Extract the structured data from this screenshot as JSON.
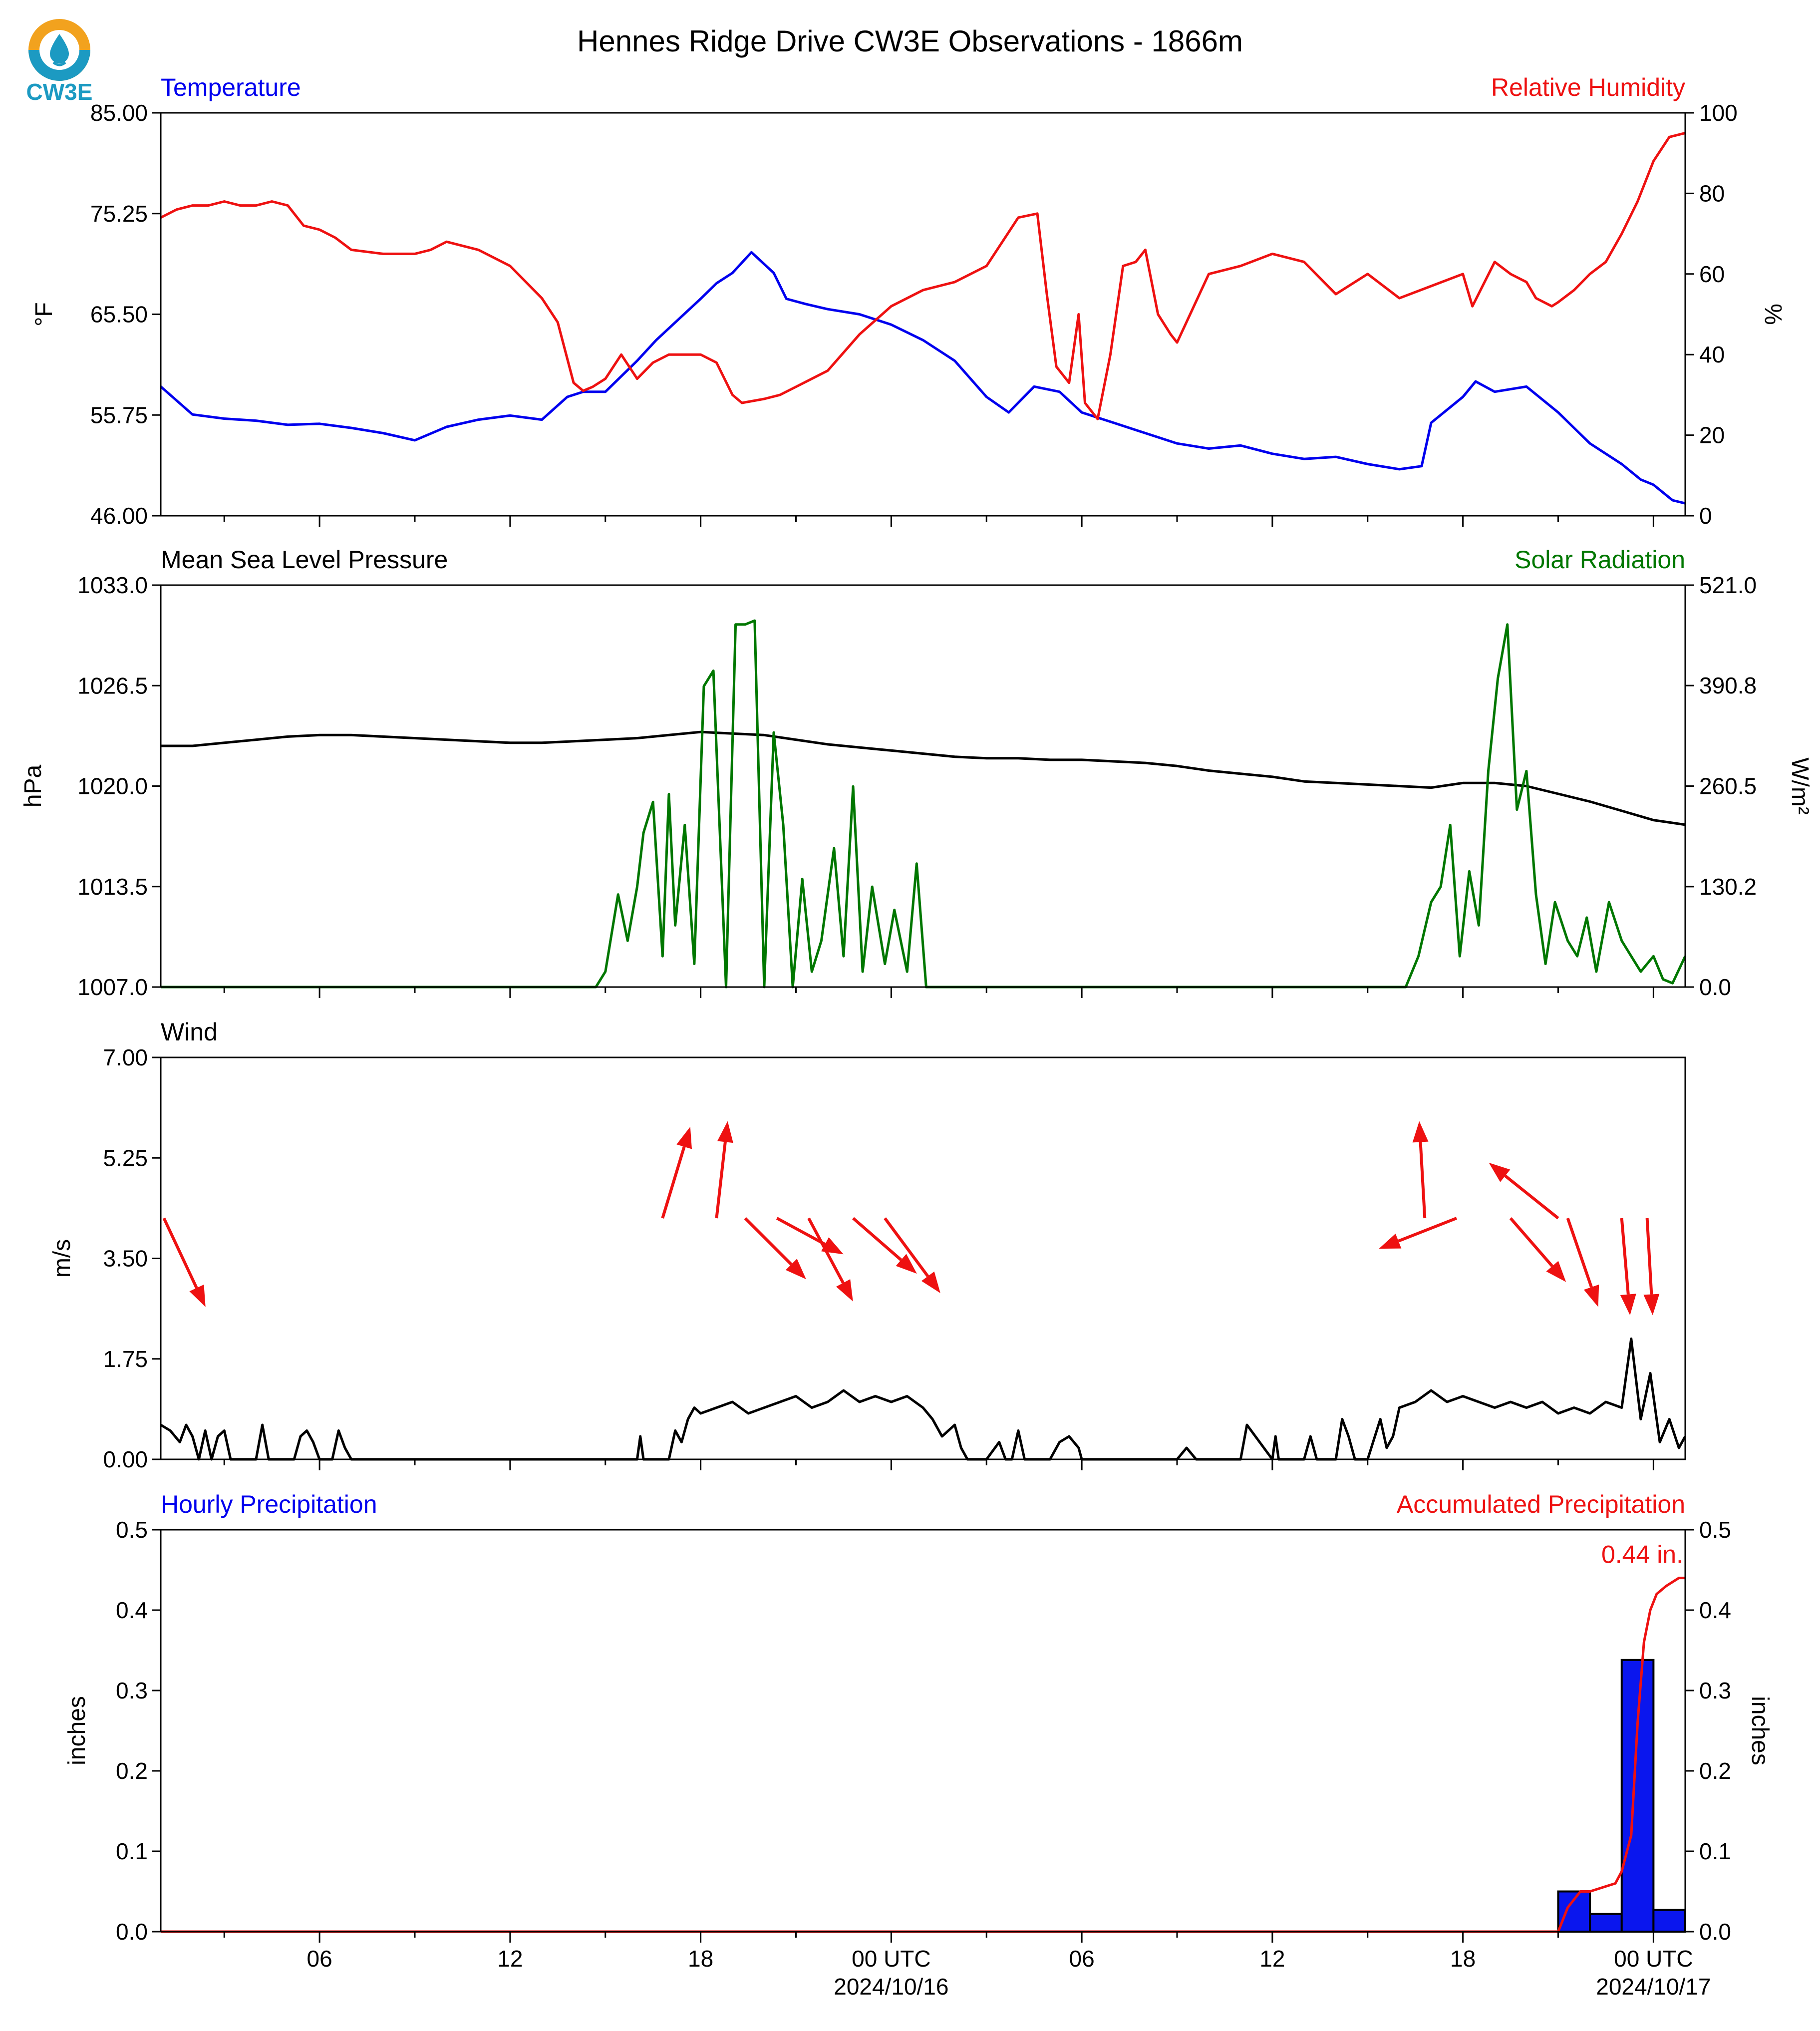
{
  "title": "Hennes Ridge Drive CW3E Observations - 1866m",
  "logo_text": "CW3E",
  "colors": {
    "blue": "#0000ee",
    "red": "#ee1111",
    "green": "#007700",
    "black": "#000000",
    "bar": "#0a16ee"
  },
  "chart_data": [
    {
      "type": "line",
      "panel": "temperature_humidity",
      "title_left": "Temperature",
      "title_right": "Relative Humidity",
      "ylabel_left": "°F",
      "ylabel_right": "%",
      "ylim_left": [
        46.0,
        85.0
      ],
      "ylim_right": [
        0,
        100
      ],
      "yticks_left": [
        "46.00",
        "55.75",
        "65.50",
        "75.25",
        "85.00"
      ],
      "yticks_right": [
        "0",
        "20",
        "40",
        "60",
        "80",
        "100"
      ],
      "series": [
        {
          "name": "Temperature",
          "axis": "left",
          "color": "blue",
          "x": [
            0,
            1,
            2,
            3,
            4,
            5,
            6,
            7,
            8,
            9,
            10,
            11,
            12,
            12.8,
            13.3,
            14,
            15,
            15.6,
            16.3,
            17,
            17.5,
            18,
            18.6,
            19.3,
            19.7,
            20.3,
            21,
            22,
            23,
            24,
            25,
            26,
            26.7,
            27.5,
            28.3,
            29,
            30,
            31,
            32,
            33,
            34,
            35,
            36,
            37,
            38,
            39,
            39.7,
            40,
            41,
            41.4,
            42,
            43,
            44,
            45,
            46,
            46.6,
            47,
            47.6,
            48
          ],
          "values": [
            58.5,
            55.8,
            55.4,
            55.2,
            54.8,
            54.9,
            54.5,
            54.0,
            53.3,
            54.6,
            55.3,
            55.7,
            55.3,
            57.5,
            58.0,
            58.0,
            61.0,
            63.0,
            65.0,
            67.0,
            68.5,
            69.5,
            71.5,
            69.5,
            67.0,
            66.5,
            66.0,
            65.5,
            64.5,
            63.0,
            61.0,
            57.5,
            56.0,
            58.5,
            58.0,
            56.0,
            55.0,
            54.0,
            53.0,
            52.5,
            52.8,
            52.0,
            51.5,
            51.7,
            51.0,
            50.5,
            50.8,
            55.0,
            57.5,
            59.0,
            58.0,
            58.5,
            56.0,
            53.0,
            51.0,
            49.5,
            49.0,
            47.5,
            47.2
          ]
        },
        {
          "name": "Relative Humidity",
          "axis": "right",
          "color": "red",
          "x": [
            0,
            0.5,
            1,
            1.5,
            2,
            2.5,
            3,
            3.5,
            4,
            4.5,
            5,
            5.5,
            6,
            7,
            8,
            8.5,
            9,
            9.5,
            10,
            11,
            12,
            12.5,
            13,
            13.3,
            13.6,
            14,
            14.5,
            15,
            15.5,
            16,
            16.5,
            17,
            17.5,
            18,
            18.3,
            19,
            19.5,
            20,
            21,
            22,
            23,
            24,
            25,
            26,
            26.5,
            27,
            27.6,
            27.9,
            28.2,
            28.6,
            28.9,
            29.1,
            29.5,
            29.9,
            30.3,
            30.7,
            31,
            31.4,
            31.8,
            32,
            33,
            34,
            35,
            36,
            37,
            38,
            39,
            40,
            41,
            41.3,
            42,
            42.5,
            43,
            43.3,
            43.8,
            44,
            44.5,
            45,
            45.5,
            46,
            46.5,
            47,
            47.5,
            48
          ],
          "values": [
            74,
            76,
            77,
            77,
            78,
            77,
            77,
            78,
            77,
            72,
            71,
            69,
            66,
            65,
            65,
            66,
            68,
            67,
            66,
            62,
            54,
            48,
            33,
            31,
            32,
            34,
            40,
            34,
            38,
            40,
            40,
            40,
            38,
            30,
            28,
            29,
            30,
            32,
            36,
            45,
            52,
            56,
            58,
            62,
            68,
            74,
            75,
            55,
            37,
            33,
            50,
            28,
            24,
            40,
            62,
            63,
            66,
            50,
            45,
            43,
            60,
            62,
            65,
            63,
            55,
            60,
            54,
            57,
            60,
            52,
            63,
            60,
            58,
            54,
            52,
            53,
            56,
            60,
            63,
            70,
            78,
            88,
            94,
            95
          ]
        }
      ]
    },
    {
      "type": "line",
      "panel": "pressure_solar",
      "title_left": "Mean Sea Level Pressure",
      "title_right": "Solar Radiation",
      "ylabel_left": "hPa",
      "ylabel_right": "W/m²",
      "ylim_left": [
        1007.0,
        1033.0
      ],
      "ylim_right": [
        0.0,
        521.0
      ],
      "yticks_left": [
        "1007.0",
        "1013.5",
        "1020.0",
        "1026.5",
        "1033.0"
      ],
      "yticks_right": [
        "0.0",
        "130.2",
        "260.5",
        "390.8",
        "521.0"
      ],
      "series": [
        {
          "name": "Mean Sea Level Pressure",
          "axis": "left",
          "color": "black",
          "x": [
            0,
            1,
            2,
            3,
            4,
            5,
            6,
            7,
            8,
            9,
            10,
            11,
            12,
            13,
            14,
            15,
            16,
            17,
            18,
            19,
            20,
            21,
            22,
            23,
            24,
            25,
            26,
            27,
            28,
            29,
            30,
            31,
            32,
            33,
            34,
            35,
            36,
            37,
            38,
            39,
            40,
            41,
            42,
            43,
            44,
            45,
            46,
            47,
            48
          ],
          "values": [
            1022.6,
            1022.6,
            1022.8,
            1023.0,
            1023.2,
            1023.3,
            1023.3,
            1023.2,
            1023.1,
            1023.0,
            1022.9,
            1022.8,
            1022.8,
            1022.9,
            1023.0,
            1023.1,
            1023.3,
            1023.5,
            1023.4,
            1023.3,
            1023.0,
            1022.7,
            1022.5,
            1022.3,
            1022.1,
            1021.9,
            1021.8,
            1021.8,
            1021.7,
            1021.7,
            1021.6,
            1021.5,
            1021.3,
            1021.0,
            1020.8,
            1020.6,
            1020.3,
            1020.2,
            1020.1,
            1020.0,
            1019.9,
            1020.2,
            1020.2,
            1020.0,
            1019.5,
            1019.0,
            1018.4,
            1017.8,
            1017.5
          ]
        },
        {
          "name": "Solar Radiation",
          "axis": "right",
          "color": "green",
          "x": [
            0,
            13.7,
            14.0,
            14.4,
            14.7,
            15.0,
            15.2,
            15.5,
            15.8,
            16.0,
            16.2,
            16.5,
            16.8,
            17.1,
            17.4,
            17.8,
            18.1,
            18.4,
            18.7,
            19.0,
            19.3,
            19.6,
            19.9,
            20.2,
            20.5,
            20.8,
            21.2,
            21.5,
            21.8,
            22.1,
            22.4,
            22.8,
            23.1,
            23.5,
            23.8,
            24.1,
            24.6,
            39.2,
            39.6,
            40.0,
            40.3,
            40.6,
            40.9,
            41.2,
            41.5,
            41.8,
            42.1,
            42.4,
            42.7,
            43.0,
            43.3,
            43.6,
            43.9,
            44.3,
            44.6,
            44.9,
            45.2,
            45.6,
            46.0,
            46.3,
            46.6,
            47.0,
            47.3,
            47.6,
            48.0
          ],
          "values": [
            0,
            0,
            20,
            120,
            60,
            130,
            200,
            240,
            40,
            250,
            80,
            210,
            30,
            390,
            410,
            0,
            470,
            470,
            475,
            0,
            330,
            210,
            0,
            140,
            20,
            60,
            180,
            40,
            260,
            20,
            130,
            30,
            100,
            20,
            160,
            0,
            0,
            0,
            40,
            110,
            130,
            210,
            40,
            150,
            80,
            280,
            400,
            470,
            230,
            280,
            120,
            30,
            110,
            60,
            40,
            90,
            20,
            110,
            60,
            40,
            20,
            40,
            10,
            5,
            40
          ]
        }
      ]
    },
    {
      "type": "line",
      "panel": "wind",
      "title_left": "Wind",
      "ylabel_left": "m/s",
      "ylim_left": [
        0.0,
        7.0
      ],
      "yticks_left": [
        "0.00",
        "1.75",
        "3.50",
        "5.25",
        "7.00"
      ],
      "series": [
        {
          "name": "Wind",
          "axis": "left",
          "color": "black",
          "x": [
            0,
            0.3,
            0.6,
            0.8,
            1.0,
            1.2,
            1.4,
            1.6,
            1.8,
            2.0,
            2.2,
            2.4,
            3.0,
            3.2,
            3.4,
            3.6,
            4.0,
            4.2,
            4.4,
            4.6,
            4.8,
            5.0,
            5.2,
            5.4,
            5.6,
            5.8,
            6.0,
            15.0,
            15.1,
            15.2,
            15.3,
            16.0,
            16.2,
            16.4,
            16.6,
            16.8,
            17.0,
            17.5,
            18.0,
            18.5,
            19.0,
            19.5,
            20.0,
            20.5,
            21.0,
            21.5,
            22.0,
            22.5,
            23.0,
            23.5,
            24.0,
            24.3,
            24.6,
            25.0,
            25.2,
            25.4,
            26.0,
            26.4,
            26.6,
            26.8,
            27.0,
            27.2,
            28.0,
            28.3,
            28.6,
            28.9,
            29.0,
            32.0,
            32.3,
            32.6,
            34.0,
            34.2,
            35.0,
            35.1,
            35.2,
            36.0,
            36.2,
            36.4,
            37.0,
            37.2,
            37.4,
            37.6,
            38.0,
            38.4,
            38.6,
            38.8,
            39.0,
            39.5,
            40.0,
            40.5,
            41.0,
            41.5,
            42.0,
            42.5,
            43.0,
            43.5,
            44.0,
            44.5,
            45.0,
            45.5,
            46.0,
            46.3,
            46.6,
            46.9,
            47.2,
            47.5,
            47.8,
            48.0
          ],
          "values": [
            0.6,
            0.5,
            0.3,
            0.6,
            0.4,
            0,
            0.5,
            0,
            0.4,
            0.5,
            0,
            0,
            0,
            0.6,
            0,
            0,
            0,
            0,
            0.4,
            0.5,
            0.3,
            0,
            0,
            0,
            0.5,
            0.2,
            0,
            0,
            0.4,
            0,
            0,
            0,
            0.5,
            0.3,
            0.7,
            0.9,
            0.8,
            0.9,
            1.0,
            0.8,
            0.9,
            1.0,
            1.1,
            0.9,
            1.0,
            1.2,
            1.0,
            1.1,
            1.0,
            1.1,
            0.9,
            0.7,
            0.4,
            0.6,
            0.2,
            0,
            0,
            0.3,
            0,
            0,
            0.5,
            0,
            0,
            0.3,
            0.4,
            0.2,
            0,
            0,
            0.2,
            0,
            0,
            0.6,
            0,
            0.4,
            0,
            0,
            0.4,
            0,
            0,
            0.7,
            0.4,
            0,
            0,
            0.7,
            0.2,
            0.4,
            0.9,
            1.0,
            1.2,
            1.0,
            1.1,
            1.0,
            0.9,
            1.0,
            0.9,
            1.0,
            0.8,
            0.9,
            0.8,
            1.0,
            0.9,
            2.1,
            0.7,
            1.5,
            0.3,
            0.7,
            0.2,
            0.4
          ]
        }
      ],
      "wind_arrows": [
        {
          "x": 0.1,
          "u": 1.5,
          "v": -3.2
        },
        {
          "x": 15.8,
          "u": 1.0,
          "v": 3.3
        },
        {
          "x": 17.5,
          "u": 0.4,
          "v": 3.5
        },
        {
          "x": 18.4,
          "u": 2.2,
          "v": -2.2
        },
        {
          "x": 19.4,
          "u": 2.4,
          "v": -1.3
        },
        {
          "x": 20.4,
          "u": 1.6,
          "v": -3.0
        },
        {
          "x": 21.8,
          "u": 2.3,
          "v": -2.0
        },
        {
          "x": 22.8,
          "u": 2.0,
          "v": -2.7
        },
        {
          "x": 39.8,
          "u": -0.2,
          "v": 3.5
        },
        {
          "x": 40.8,
          "u": -2.8,
          "v": -1.1
        },
        {
          "x": 42.5,
          "u": 2.0,
          "v": -2.3
        },
        {
          "x": 44.0,
          "u": -2.5,
          "v": 2.0
        },
        {
          "x": 44.3,
          "u": 1.1,
          "v": -3.2
        },
        {
          "x": 46.0,
          "u": 0.3,
          "v": -3.5
        },
        {
          "x": 46.8,
          "u": 0.2,
          "v": -3.5
        }
      ]
    },
    {
      "type": "bar",
      "panel": "precipitation",
      "title_left": "Hourly Precipitation",
      "title_right": "Accumulated Precipitation",
      "ylabel_left": "inches",
      "ylabel_right": "inches",
      "ylim_left": [
        0.0,
        0.5
      ],
      "ylim_right": [
        0.0,
        0.5
      ],
      "yticks_left": [
        "0.0",
        "0.1",
        "0.2",
        "0.3",
        "0.4",
        "0.5"
      ],
      "yticks_right": [
        "0.0",
        "0.1",
        "0.2",
        "0.3",
        "0.4",
        "0.5"
      ],
      "bars": {
        "name": "Hourly Precipitation",
        "x_start": [
          44,
          45,
          46,
          47
        ],
        "values": [
          0.05,
          0.022,
          0.338,
          0.027
        ]
      },
      "accum": {
        "name": "Accumulated Precipitation",
        "color": "red",
        "x": [
          0,
          44.0,
          44.3,
          44.7,
          45.0,
          45.4,
          45.8,
          46.0,
          46.3,
          46.5,
          46.7,
          46.9,
          47.1,
          47.4,
          47.8,
          48
        ],
        "values": [
          0,
          0,
          0.03,
          0.05,
          0.05,
          0.055,
          0.06,
          0.075,
          0.12,
          0.26,
          0.36,
          0.4,
          0.42,
          0.43,
          0.44,
          0.44
        ]
      },
      "annotation": "0.44 in."
    }
  ],
  "x_axis": {
    "range_hours": [
      0,
      48
    ],
    "tick_hours": [
      5,
      11,
      17,
      23,
      29,
      35,
      41,
      47
    ],
    "tick_labels": [
      "06",
      "12",
      "18",
      "00 UTC",
      "06",
      "12",
      "18",
      "00 UTC"
    ],
    "date_labels": [
      {
        "hour": 23,
        "text": "2024/10/16"
      },
      {
        "hour": 47,
        "text": "2024/10/17"
      }
    ],
    "minor_hours": [
      2,
      8,
      14,
      20,
      26,
      32,
      38,
      44
    ]
  }
}
